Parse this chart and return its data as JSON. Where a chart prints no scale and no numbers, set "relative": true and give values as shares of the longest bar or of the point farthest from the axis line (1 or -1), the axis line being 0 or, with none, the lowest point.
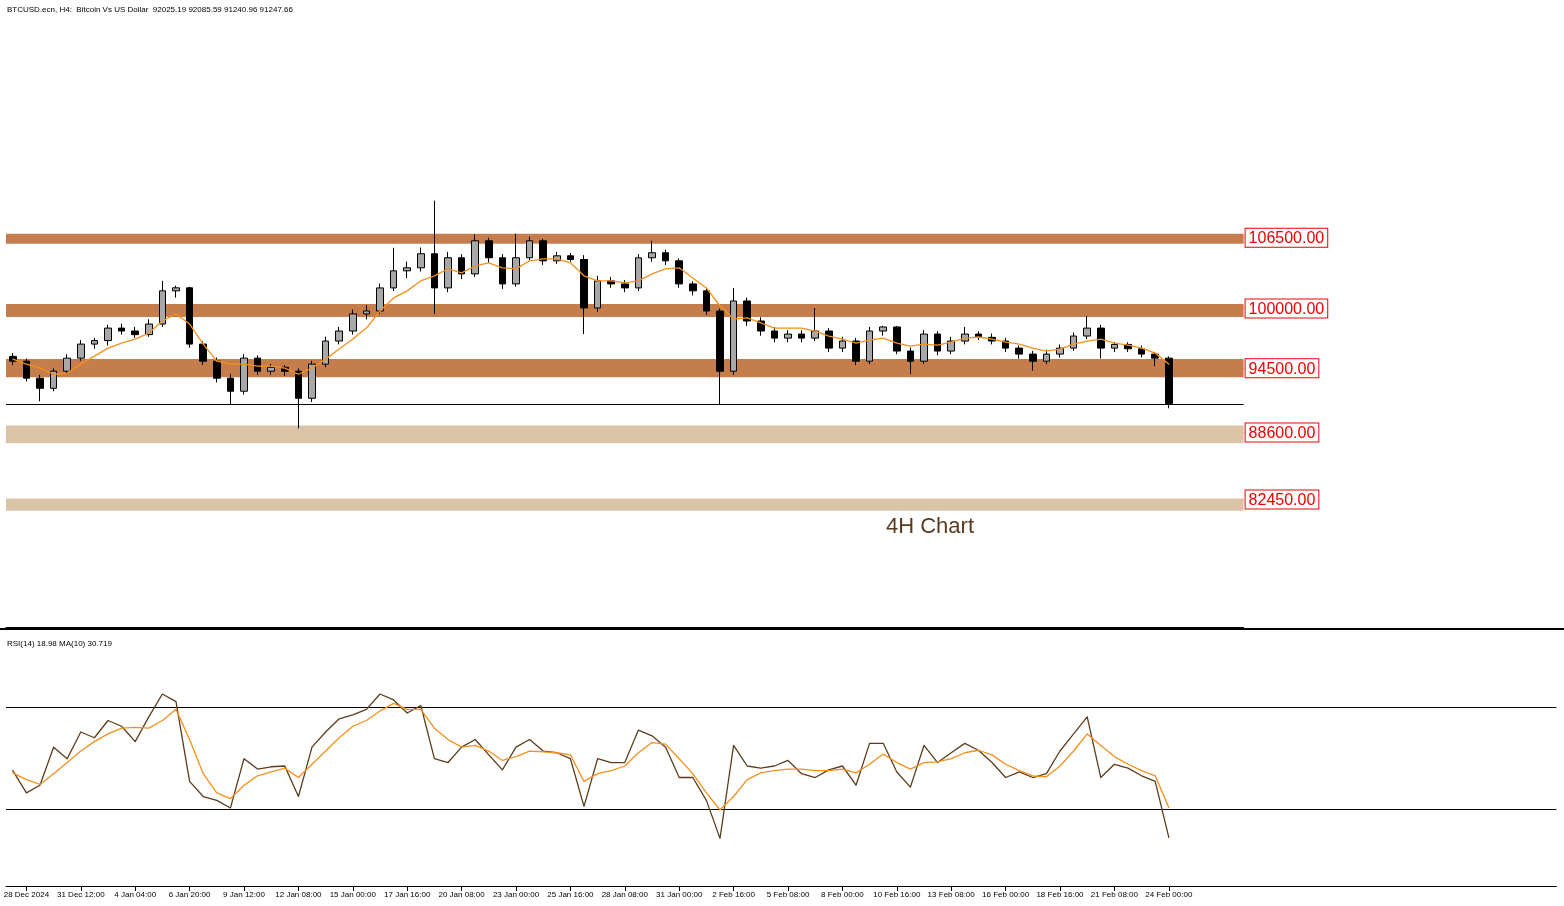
{
  "chart_data": [
    {
      "type": "candlestick",
      "title": "BTCUSD.ecn, H4:  Bitcoin Vs US Dollar  92025.19 92085.59 91240.96 91247.66",
      "color": "#000000",
      "categories": [
        null,
        null,
        null,
        null,
        null,
        null,
        null,
        null,
        null,
        null,
        null,
        null,
        null,
        null,
        null,
        null,
        null,
        null,
        null,
        null,
        null,
        null,
        null,
        null,
        null,
        null,
        null,
        null,
        null,
        null,
        null,
        null,
        null,
        null,
        null,
        null,
        null,
        null,
        null,
        null,
        null,
        null,
        null,
        null,
        null,
        null,
        null,
        null,
        null,
        null,
        null,
        null,
        null,
        null,
        null,
        null,
        null,
        null,
        null,
        null,
        null,
        null,
        null,
        null,
        null,
        null,
        null,
        null,
        null,
        null,
        null,
        null,
        null,
        null,
        null,
        null,
        null,
        null,
        null,
        null,
        null,
        null,
        null,
        null,
        null,
        null
      ],
      "ohlc": [
        [
          95600,
          95900,
          94800,
          95160
        ],
        [
          95160,
          95400,
          93300,
          93600
        ],
        [
          93600,
          93900,
          91480,
          92670
        ],
        [
          92670,
          94500,
          92400,
          94240
        ],
        [
          94240,
          95800,
          94000,
          95440
        ],
        [
          95440,
          97100,
          95200,
          96730
        ],
        [
          96730,
          97300,
          96300,
          97050
        ],
        [
          97050,
          98500,
          96600,
          98200
        ],
        [
          98200,
          98600,
          97600,
          97930
        ],
        [
          97930,
          98300,
          97300,
          97600
        ],
        [
          97600,
          99000,
          97400,
          98570
        ],
        [
          98570,
          102540,
          98300,
          101620
        ],
        [
          101620,
          102100,
          101000,
          101900
        ],
        [
          101900,
          102000,
          96400,
          96730
        ],
        [
          96730,
          97000,
          94800,
          95160
        ],
        [
          95160,
          95500,
          93200,
          93600
        ],
        [
          93600,
          94000,
          91200,
          92400
        ],
        [
          92400,
          95800,
          92100,
          95440
        ],
        [
          95440,
          95700,
          93900,
          94240
        ],
        [
          94240,
          94900,
          93900,
          94600
        ],
        [
          94600,
          94800,
          93800,
          94240
        ],
        [
          94240,
          94500,
          88990,
          91750
        ],
        [
          91750,
          95200,
          91400,
          94890
        ],
        [
          94890,
          97400,
          94600,
          97010
        ],
        [
          97010,
          98300,
          96700,
          97930
        ],
        [
          97930,
          99900,
          97600,
          99500
        ],
        [
          99500,
          100300,
          99000,
          99770
        ],
        [
          99770,
          102300,
          99500,
          101890
        ],
        [
          101890,
          105580,
          101600,
          103460
        ],
        [
          103460,
          104300,
          102800,
          103740
        ],
        [
          103740,
          105600,
          103400,
          105030
        ],
        [
          105030,
          109910,
          99500,
          101890
        ],
        [
          101890,
          105200,
          101500,
          104660
        ],
        [
          104660,
          105000,
          102700,
          103180
        ],
        [
          103180,
          106800,
          102900,
          106220
        ],
        [
          106220,
          106500,
          104200,
          104660
        ],
        [
          104660,
          105000,
          101800,
          102260
        ],
        [
          102260,
          106870,
          102000,
          104660
        ],
        [
          104660,
          106600,
          104400,
          106220
        ],
        [
          106220,
          106400,
          104000,
          104380
        ],
        [
          104380,
          105200,
          104100,
          104840
        ],
        [
          104840,
          105100,
          104300,
          104500
        ],
        [
          104500,
          104900,
          97650,
          100050
        ],
        [
          100050,
          103000,
          99700,
          102540
        ],
        [
          102540,
          102900,
          101900,
          102260
        ],
        [
          102260,
          102600,
          101500,
          101890
        ],
        [
          101890,
          105000,
          101600,
          104660
        ],
        [
          104660,
          106220,
          104300,
          105120
        ],
        [
          105120,
          105400,
          104000,
          104380
        ],
        [
          104380,
          104600,
          101900,
          102260
        ],
        [
          102260,
          102500,
          101200,
          101620
        ],
        [
          101620,
          101900,
          99400,
          99770
        ],
        [
          99770,
          100000,
          91200,
          94240
        ],
        [
          94240,
          101890,
          93900,
          100690
        ],
        [
          100690,
          101000,
          98400,
          98850
        ],
        [
          98850,
          99200,
          97500,
          97930
        ],
        [
          97930,
          98300,
          96900,
          97280
        ],
        [
          97280,
          98000,
          96900,
          97650
        ],
        [
          97650,
          98000,
          96900,
          97280
        ],
        [
          97280,
          100050,
          97000,
          97930
        ],
        [
          97930,
          98200,
          96000,
          96360
        ],
        [
          96360,
          97400,
          96000,
          97010
        ],
        [
          97010,
          97300,
          94800,
          95160
        ],
        [
          95160,
          98300,
          94900,
          97930
        ],
        [
          97930,
          98400,
          97500,
          98300
        ],
        [
          98300,
          98400,
          95800,
          96090
        ],
        [
          96090,
          96400,
          93960,
          95160
        ],
        [
          95160,
          98000,
          94900,
          97650
        ],
        [
          97650,
          97900,
          95700,
          96090
        ],
        [
          96090,
          97400,
          95800,
          97010
        ],
        [
          97010,
          98300,
          96700,
          97650
        ],
        [
          97650,
          97900,
          97100,
          97350
        ],
        [
          97350,
          97700,
          96700,
          97010
        ],
        [
          97010,
          97300,
          96000,
          96360
        ],
        [
          96360,
          96600,
          95400,
          95810
        ],
        [
          95810,
          96100,
          94300,
          95160
        ],
        [
          95160,
          96200,
          94900,
          95810
        ],
        [
          95810,
          96700,
          95500,
          96360
        ],
        [
          96360,
          97800,
          96100,
          97470
        ],
        [
          97470,
          99310,
          97200,
          98200
        ],
        [
          98200,
          98500,
          95400,
          96360
        ],
        [
          96360,
          96900,
          96000,
          96700
        ],
        [
          96700,
          96900,
          96000,
          96300
        ],
        [
          96300,
          96600,
          95500,
          95810
        ],
        [
          95810,
          96000,
          94700,
          95440
        ],
        [
          95440,
          95600,
          90830,
          91250
        ]
      ],
      "series": [
        {
          "type": "line",
          "color": "#f5901e",
          "values": [
            95350,
            94890,
            94520,
            93960,
            94060,
            94890,
            95620,
            96360,
            96820,
            97190,
            97740,
            98850,
            99500,
            98570,
            96730,
            95160,
            94890,
            94890,
            94700,
            94700,
            94520,
            93960,
            94520,
            95350,
            96270,
            97190,
            98200,
            99770,
            100970,
            101620,
            102540,
            103000,
            103640,
            103270,
            103920,
            104200,
            103740,
            103640,
            104380,
            104560,
            104560,
            104200,
            103000,
            102540,
            102540,
            102350,
            102540,
            103180,
            103640,
            103740,
            102810,
            101890,
            100230,
            99030,
            99130,
            98670,
            98200,
            98200,
            98200,
            97930,
            97470,
            97190,
            96820,
            97100,
            97280,
            96820,
            96550,
            96730,
            96640,
            96910,
            97280,
            97380,
            97190,
            96910,
            96730,
            96360,
            96090,
            96270,
            96730,
            97010,
            97190,
            96820,
            96640,
            96360,
            95900,
            94890
          ]
        }
      ],
      "ylim": [
        70740,
        128340
      ],
      "yticks": [
        {
          "value": 106500,
          "label": "106500.00"
        },
        {
          "value": 100000,
          "label": "100000.00"
        },
        {
          "value": 94500,
          "label": "94500.00"
        },
        {
          "value": 88600,
          "label": "88600.00"
        },
        {
          "value": 82450,
          "label": "82450.00"
        }
      ],
      "tick_labels": "y",
      "marker": "none",
      "line_style": "solid",
      "grid": false,
      "bands": [
        {
          "axis": "y",
          "from": 105950,
          "to": 106870,
          "color": "#c57d4c"
        },
        {
          "axis": "y",
          "from": 99220,
          "to": 100420,
          "color": "#c57d4c"
        },
        {
          "axis": "y",
          "from": 93690,
          "to": 95350,
          "color": "#c57d4c"
        },
        {
          "axis": "y",
          "from": 87610,
          "to": 89260,
          "color": "#d9c4a8"
        },
        {
          "axis": "y",
          "from": 81430,
          "to": 82540,
          "color": "#d9c4a8"
        }
      ],
      "ref_lines": [
        {
          "axis": "y",
          "value": 91240,
          "color": "#000000"
        }
      ],
      "annotations": [
        "4H Chart"
      ]
    },
    {
      "type": "line",
      "title": "RSI(14) 18.98 MA(10) 30.719",
      "relative": true,
      "categories": [
        null,
        "28 Dec 2024",
        null,
        null,
        null,
        "31 Dec 12:00",
        null,
        null,
        null,
        "4 Jan 04:00",
        null,
        null,
        null,
        "6 Jan 20:00",
        null,
        null,
        null,
        "9 Jan 12:00",
        null,
        null,
        null,
        "12 Jan 08:00",
        null,
        null,
        null,
        "15 Jan 00:00",
        null,
        null,
        null,
        "17 Jan 16:00",
        null,
        null,
        null,
        "20 Jan 08:00",
        null,
        null,
        null,
        "23 Jan 00:00",
        null,
        null,
        null,
        "25 Jan 16:00",
        null,
        null,
        null,
        "28 Jan 08:00",
        null,
        null,
        null,
        "31 Jan 00:00",
        null,
        null,
        null,
        "2 Feb 16:00",
        null,
        null,
        null,
        "5 Feb 08:00",
        null,
        null,
        null,
        "8 Feb 00:00",
        null,
        null,
        null,
        "10 Feb 16:00",
        null,
        null,
        null,
        "13 Feb 08:00",
        null,
        null,
        null,
        "16 Feb 00:00",
        null,
        null,
        null,
        "18 Feb 16:00",
        null,
        null,
        null,
        "21 Feb 08:00",
        null,
        null,
        null,
        "24 Feb 00:00"
      ],
      "series": [
        {
          "color": "#5c3d1e",
          "values": [
            0.601,
            0.485,
            0.525,
            0.723,
            0.663,
            0.802,
            0.772,
            0.862,
            0.832,
            0.752,
            0.881,
            1,
            0.96,
            0.545,
            0.466,
            0.446,
            0.406,
            0.663,
            0.609,
            0.621,
            0.625,
            0.466,
            0.723,
            0.802,
            0.871,
            0.891,
            0.92,
            1,
            0.969,
            0.901,
            0.94,
            0.663,
            0.643,
            0.723,
            0.763,
            0.683,
            0.605,
            0.723,
            0.763,
            0.703,
            0.694,
            0.663,
            0.415,
            0.663,
            0.643,
            0.643,
            0.812,
            0.782,
            0.723,
            0.565,
            0.565,
            0.446,
            0.248,
            0.732,
            0.625,
            0.614,
            0.625,
            0.654,
            0.585,
            0.565,
            0.605,
            0.625,
            0.525,
            0.743,
            0.743,
            0.594,
            0.515,
            0.732,
            0.643,
            0.694,
            0.743,
            0.707,
            0.643,
            0.565,
            0.594,
            0.565,
            0.585,
            0.703,
            0.792,
            0.881,
            0.565,
            0.634,
            0.614,
            0.574,
            0.545,
            0.253
          ]
        },
        {
          "color": "#f5901e",
          "values": [
            0.589,
            0.554,
            0.529,
            0.585,
            0.643,
            0.703,
            0.752,
            0.792,
            0.822,
            0.826,
            0.822,
            0.862,
            0.92,
            0.763,
            0.585,
            0.485,
            0.455,
            0.525,
            0.574,
            0.594,
            0.614,
            0.565,
            0.634,
            0.703,
            0.772,
            0.832,
            0.862,
            0.911,
            0.951,
            0.92,
            0.92,
            0.822,
            0.763,
            0.723,
            0.732,
            0.703,
            0.654,
            0.674,
            0.703,
            0.699,
            0.694,
            0.683,
            0.545,
            0.585,
            0.601,
            0.625,
            0.694,
            0.747,
            0.739,
            0.663,
            0.585,
            0.485,
            0.397,
            0.466,
            0.554,
            0.589,
            0.601,
            0.609,
            0.609,
            0.601,
            0.601,
            0.609,
            0.589,
            0.634,
            0.687,
            0.643,
            0.609,
            0.643,
            0.647,
            0.663,
            0.694,
            0.707,
            0.683,
            0.634,
            0.601,
            0.574,
            0.569,
            0.625,
            0.703,
            0.792,
            0.732,
            0.674,
            0.634,
            0.601,
            0.574,
            0.409
          ]
        }
      ],
      "tick_labels": "x",
      "marker": "none",
      "line_style": "solid",
      "grid": false,
      "ref_lines": [
        {
          "axis": "y",
          "value": 0.932,
          "color": "#000000"
        },
        {
          "axis": "y",
          "value": 0.399,
          "color": "#000000"
        }
      ]
    }
  ]
}
